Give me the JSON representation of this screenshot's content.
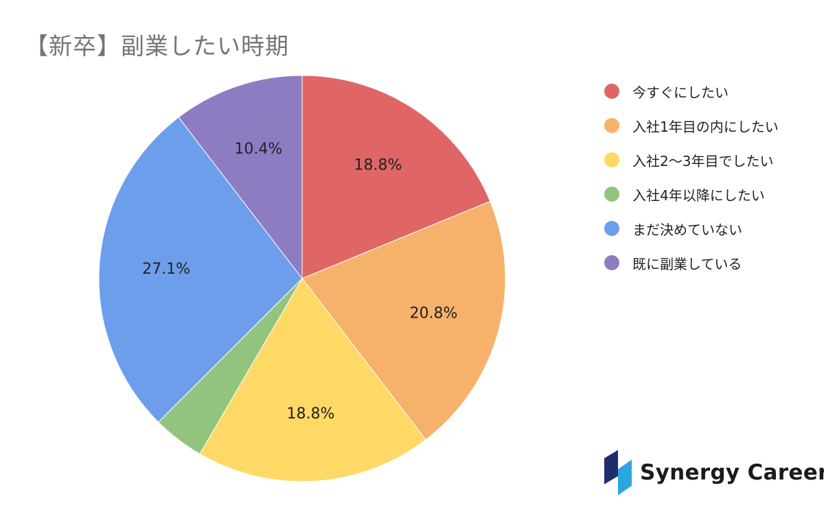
{
  "chart_data": {
    "type": "pie",
    "title": "【新卒】副業したい時期",
    "slices": [
      {
        "label": "今すぐにしたい",
        "value": 18.8,
        "display": "18.8%",
        "color": "#E06666"
      },
      {
        "label": "入社1年目の内にしたい",
        "value": 20.8,
        "display": "20.8%",
        "color": "#F6B26B"
      },
      {
        "label": "入社2～3年目でしたい",
        "value": 18.8,
        "display": "18.8%",
        "color": "#FFD966"
      },
      {
        "label": "入社4年以降にしたい",
        "value": 4.1,
        "display": "",
        "color": "#93C47D"
      },
      {
        "label": "まだ決めていない",
        "value": 27.1,
        "display": "27.1%",
        "color": "#6D9EEB"
      },
      {
        "label": "既に副業している",
        "value": 10.4,
        "display": "10.4%",
        "color": "#8E7CC3"
      }
    ],
    "legend_position": "right"
  },
  "logo": {
    "text": "Synergy Career",
    "mark_colors": [
      "#1E2D6B",
      "#2AA7E1"
    ]
  }
}
